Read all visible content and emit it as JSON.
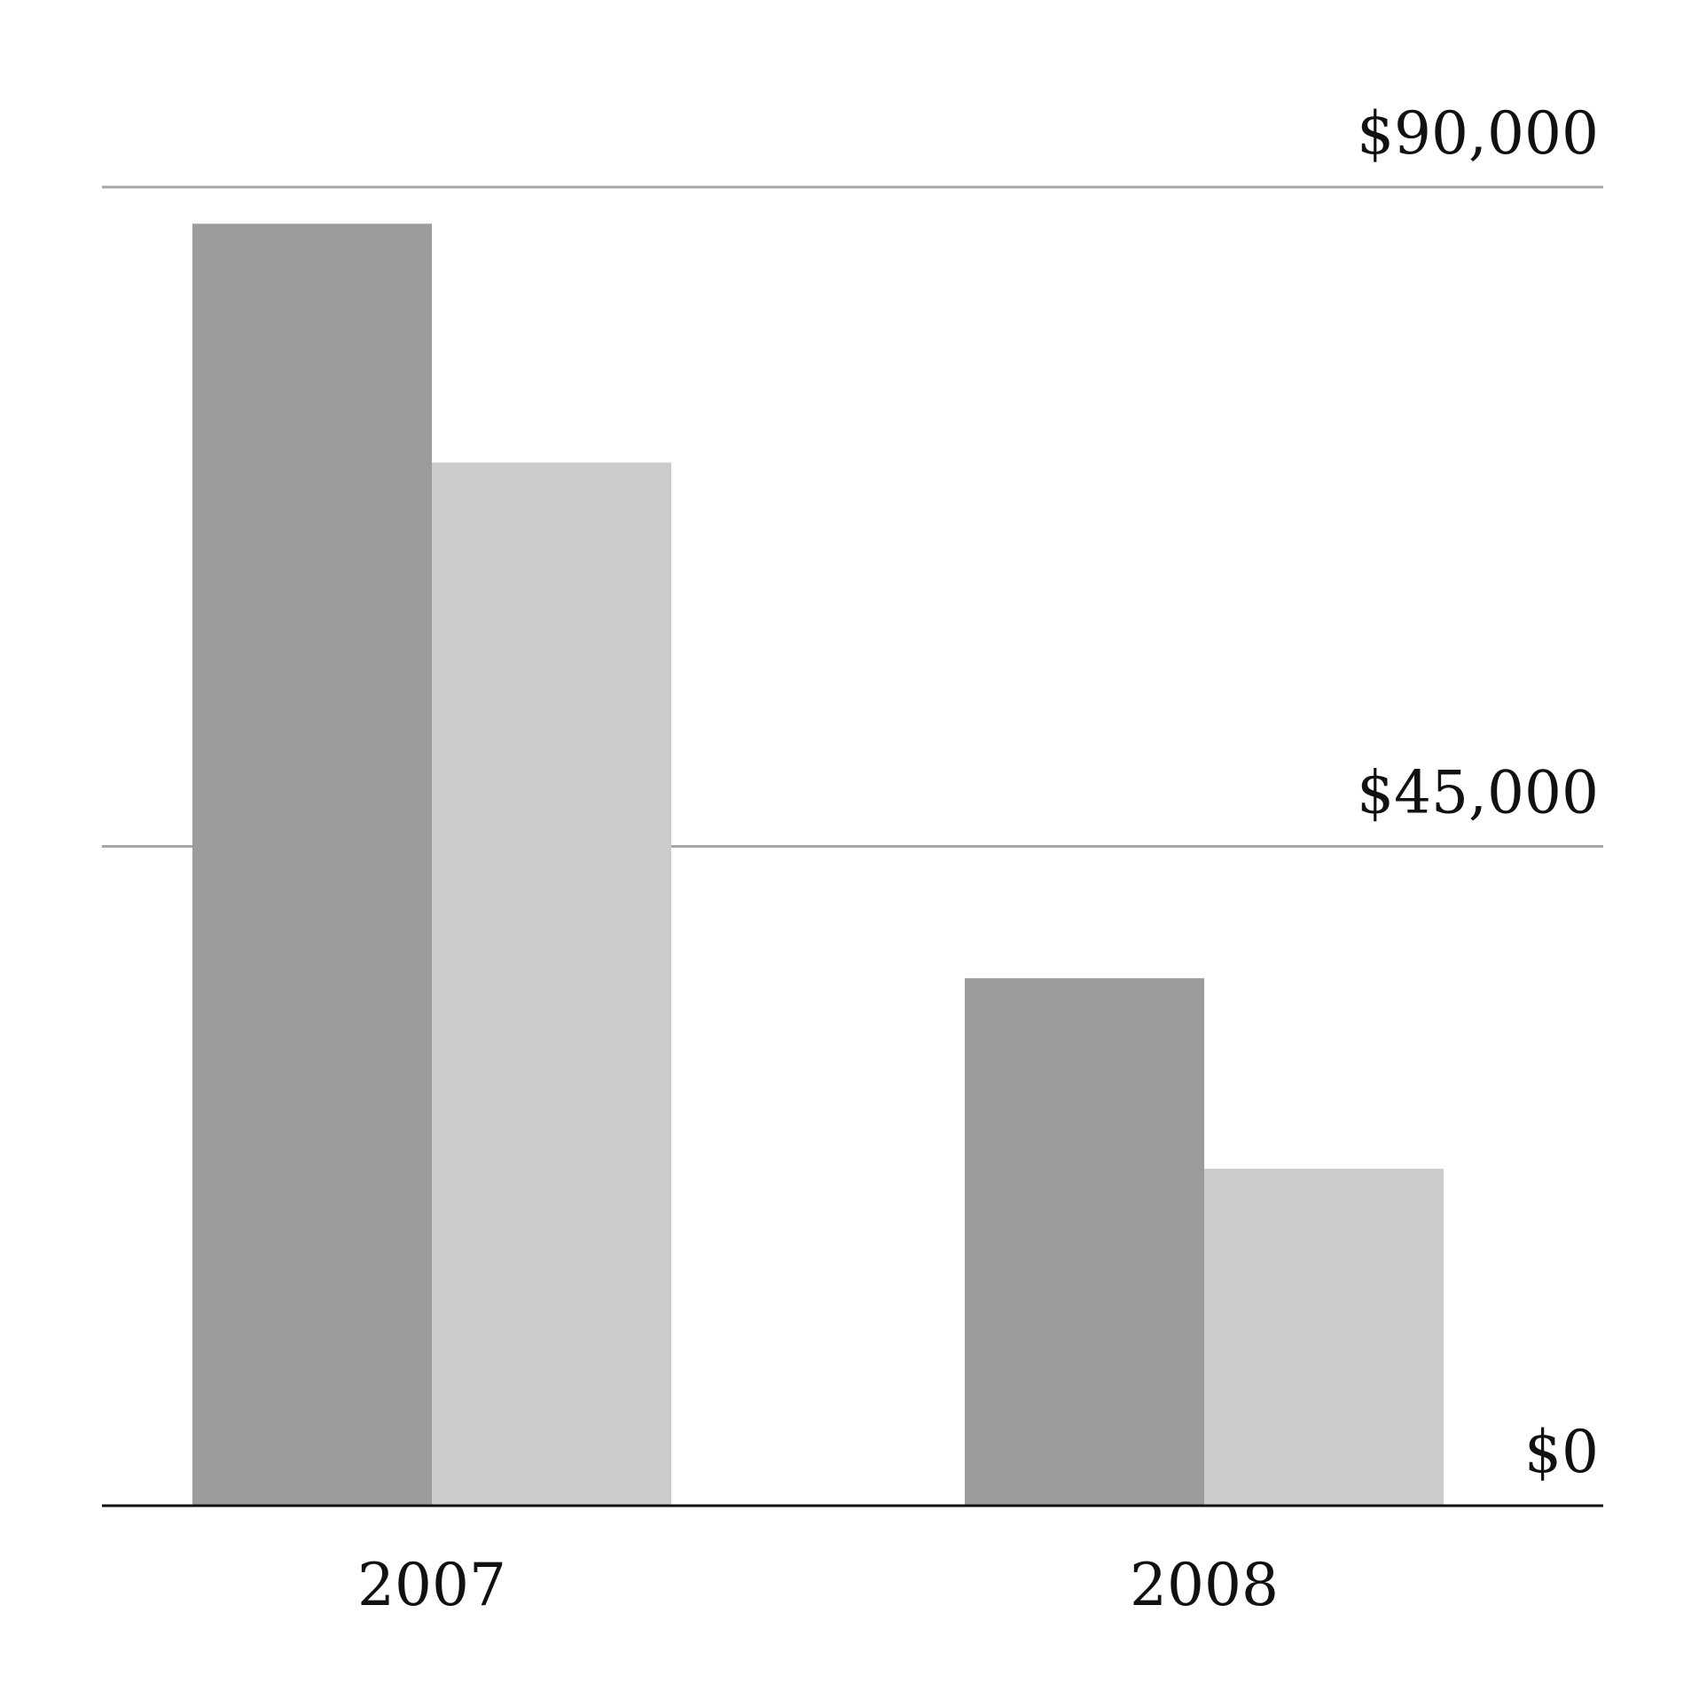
{
  "chart_data": {
    "type": "bar",
    "title": "",
    "xlabel": "",
    "ylabel": "",
    "categories": [
      "2007",
      "2008"
    ],
    "series": [
      {
        "values": [
          87500,
          36000
        ],
        "color": "#9b9b9b"
      },
      {
        "values": [
          71200,
          23000
        ],
        "color": "#cccccc"
      }
    ],
    "ylim": [
      0,
      90000
    ],
    "yticks": [
      {
        "value": 0,
        "label": "$0"
      },
      {
        "value": 45000,
        "label": "$45,000"
      },
      {
        "value": 90000,
        "label": "$90,000"
      }
    ],
    "grid": true,
    "grid_color": "#a6a6a6",
    "baseline_color": "#111111",
    "legend": "none"
  }
}
